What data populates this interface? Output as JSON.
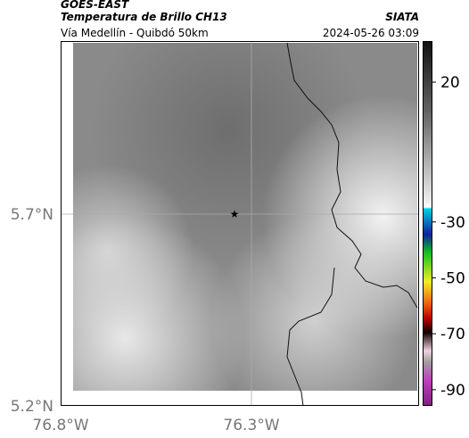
{
  "header": {
    "title": "GOES-EAST",
    "subtitle": "Temperatura de Brillo CH13",
    "route": "Vía Medellín - Quibdó 50km",
    "source": "SIATA",
    "timestamp": "2024-05-26 03:09"
  },
  "map": {
    "lat_labels": [
      "5.7°N",
      "5.2°N"
    ],
    "lon_labels": [
      "76.8°W",
      "76.3°W"
    ]
  },
  "colorbar": {
    "ticks": [
      20,
      -30,
      -50,
      -70,
      -90
    ]
  }
}
